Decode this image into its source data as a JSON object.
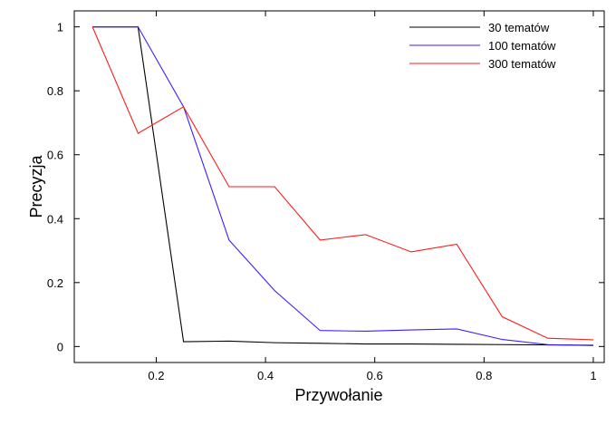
{
  "chart_data": {
    "type": "line",
    "title": "",
    "xlabel": "Przywołanie",
    "ylabel": "Precyzja",
    "xlim": [
      0.05,
      1.02
    ],
    "ylim": [
      -0.05,
      1.05
    ],
    "xticks": [
      0.2,
      0.4,
      0.6,
      0.8,
      1
    ],
    "xtick_labels": [
      "0.2",
      "0.4",
      "0.6",
      "0.8",
      "1"
    ],
    "yticks": [
      0,
      0.2,
      0.4,
      0.6,
      0.8,
      1
    ],
    "ytick_labels": [
      "0",
      "0.2",
      "0.4",
      "0.6",
      "0.8",
      "1"
    ],
    "grid": false,
    "legend_position": "top-right",
    "x": [
      0.0833,
      0.1667,
      0.25,
      0.3333,
      0.4167,
      0.5,
      0.5833,
      0.6667,
      0.75,
      0.8333,
      0.9167,
      1.0
    ],
    "series": [
      {
        "name": "30 tematów",
        "color": "#000000",
        "values": [
          1.0,
          1.0,
          0.015,
          0.017,
          0.012,
          0.01,
          0.008,
          0.008,
          0.007,
          0.006,
          0.005,
          0.004
        ]
      },
      {
        "name": "100 tematów",
        "color": "#3a1eff",
        "values": [
          1.0,
          1.0,
          0.75,
          0.333,
          0.175,
          0.05,
          0.048,
          0.052,
          0.055,
          0.022,
          0.006,
          0.003
        ]
      },
      {
        "name": "300 tematów",
        "color": "#ff1a1a",
        "values": [
          1.0,
          0.667,
          0.75,
          0.5,
          0.5,
          0.333,
          0.35,
          0.296,
          0.32,
          0.093,
          0.026,
          0.021
        ]
      }
    ]
  }
}
